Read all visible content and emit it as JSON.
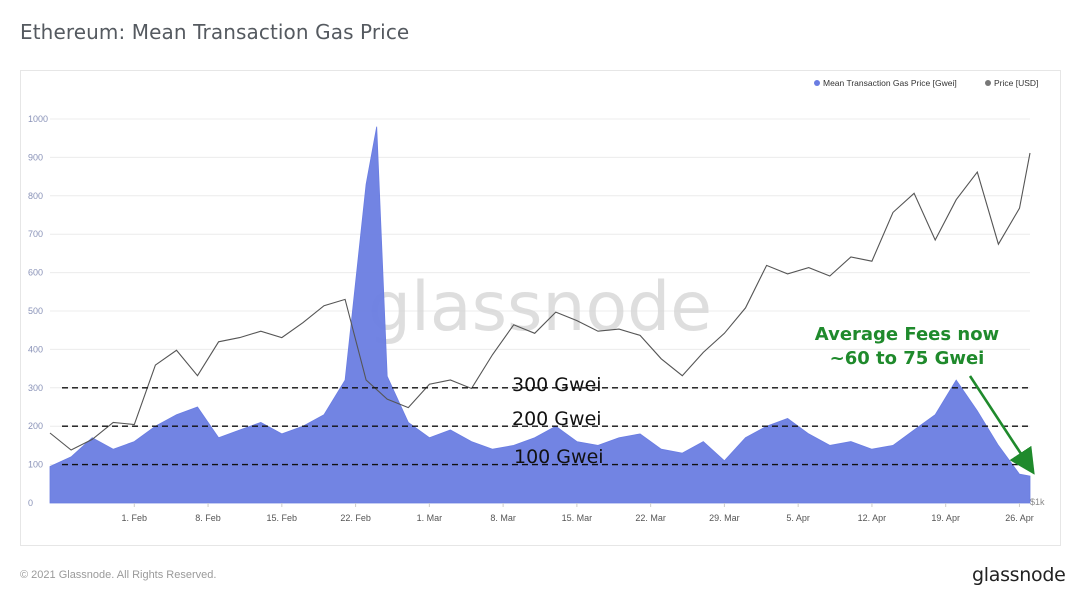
{
  "title": "Ethereum: Mean Transaction Gas Price",
  "watermark": "glassnode",
  "footer": {
    "copyright": "© 2021 Glassnode. All Rights Reserved.",
    "logo": "glassnode"
  },
  "colors": {
    "gas_fill": "#6a7de2",
    "price_line": "#555555",
    "annotation": "#1f8a2c",
    "grid": "#ececec",
    "axis_text": "#8a93b8"
  },
  "chart_data": {
    "type": "area",
    "title": "Ethereum: Mean Transaction Gas Price",
    "legend_position": "top-right",
    "grid": true,
    "x_range": [
      "2021-01-24",
      "2021-04-27"
    ],
    "x_ticks": [
      "1. Feb",
      "8. Feb",
      "15. Feb",
      "22. Feb",
      "1. Mar",
      "8. Mar",
      "15. Mar",
      "22. Mar",
      "29. Mar",
      "5. Apr",
      "12. Apr",
      "19. Apr",
      "26. Apr"
    ],
    "y_left": {
      "label": "",
      "ticks": [
        "0",
        "100",
        "200",
        "300",
        "400",
        "500",
        "600",
        "700",
        "800",
        "900",
        "1000"
      ],
      "range": [
        0,
        1000
      ]
    },
    "y_right": {
      "label": "",
      "ticks": [
        "$1k"
      ]
    },
    "series": [
      {
        "name": "Mean Transaction Gas Price [Gwei]",
        "axis": "left",
        "x": [
          "2021-01-24",
          "2021-01-26",
          "2021-01-28",
          "2021-01-30",
          "2021-02-01",
          "2021-02-03",
          "2021-02-05",
          "2021-02-07",
          "2021-02-09",
          "2021-02-11",
          "2021-02-13",
          "2021-02-15",
          "2021-02-17",
          "2021-02-19",
          "2021-02-21",
          "2021-02-23",
          "2021-02-24",
          "2021-02-25",
          "2021-02-27",
          "2021-03-01",
          "2021-03-03",
          "2021-03-05",
          "2021-03-07",
          "2021-03-09",
          "2021-03-11",
          "2021-03-13",
          "2021-03-15",
          "2021-03-17",
          "2021-03-19",
          "2021-03-21",
          "2021-03-23",
          "2021-03-25",
          "2021-03-27",
          "2021-03-29",
          "2021-03-31",
          "2021-04-02",
          "2021-04-04",
          "2021-04-06",
          "2021-04-08",
          "2021-04-10",
          "2021-04-12",
          "2021-04-14",
          "2021-04-16",
          "2021-04-18",
          "2021-04-20",
          "2021-04-22",
          "2021-04-24",
          "2021-04-26",
          "2021-04-27"
        ],
        "y": [
          95,
          120,
          170,
          140,
          160,
          200,
          230,
          250,
          170,
          190,
          210,
          180,
          200,
          230,
          320,
          830,
          980,
          330,
          210,
          170,
          190,
          160,
          140,
          150,
          170,
          200,
          160,
          150,
          170,
          180,
          140,
          130,
          160,
          110,
          170,
          200,
          220,
          180,
          150,
          160,
          140,
          150,
          190,
          230,
          320,
          240,
          150,
          75,
          70
        ]
      },
      {
        "name": "Price [USD]",
        "axis": "right",
        "x": [
          "2021-01-24",
          "2021-01-26",
          "2021-01-28",
          "2021-01-30",
          "2021-02-01",
          "2021-02-03",
          "2021-02-05",
          "2021-02-07",
          "2021-02-09",
          "2021-02-11",
          "2021-02-13",
          "2021-02-15",
          "2021-02-17",
          "2021-02-19",
          "2021-02-21",
          "2021-02-23",
          "2021-02-25",
          "2021-02-27",
          "2021-03-01",
          "2021-03-03",
          "2021-03-05",
          "2021-03-07",
          "2021-03-09",
          "2021-03-11",
          "2021-03-13",
          "2021-03-15",
          "2021-03-17",
          "2021-03-19",
          "2021-03-21",
          "2021-03-23",
          "2021-03-25",
          "2021-03-27",
          "2021-03-29",
          "2021-03-31",
          "2021-04-02",
          "2021-04-04",
          "2021-04-06",
          "2021-04-08",
          "2021-04-10",
          "2021-04-12",
          "2021-04-14",
          "2021-04-16",
          "2021-04-18",
          "2021-04-20",
          "2021-04-22",
          "2021-04-24",
          "2021-04-26",
          "2021-04-27"
        ],
        "y": [
          1330,
          1250,
          1300,
          1380,
          1370,
          1650,
          1720,
          1600,
          1760,
          1780,
          1810,
          1780,
          1850,
          1930,
          1960,
          1580,
          1490,
          1450,
          1560,
          1580,
          1540,
          1700,
          1840,
          1800,
          1900,
          1860,
          1810,
          1820,
          1790,
          1680,
          1600,
          1710,
          1800,
          1920,
          2120,
          2080,
          2110,
          2070,
          2160,
          2140,
          2370,
          2460,
          2240,
          2430,
          2560,
          2220,
          2390,
          2650
        ]
      }
    ],
    "annotations": [
      {
        "text": "300 Gwei",
        "y": 300,
        "style": "dashed"
      },
      {
        "text": "200 Gwei",
        "y": 200,
        "style": "dashed"
      },
      {
        "text": "100 Gwei",
        "y": 100,
        "style": "dashed"
      },
      {
        "text_line1": "Average Fees now",
        "text_line2": "~60 to 75 Gwei",
        "arrow_to": "2021-04-27"
      }
    ]
  }
}
